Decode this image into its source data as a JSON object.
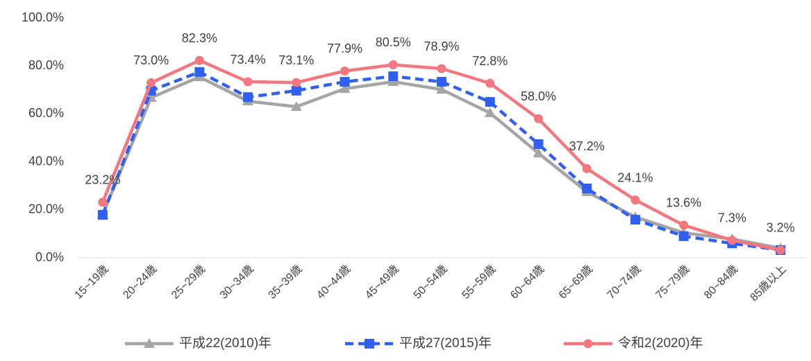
{
  "chart_data": {
    "type": "line",
    "categories": [
      "15~19歳",
      "20~24歳",
      "25~29歳",
      "30~34歳",
      "35~39歳",
      "40~44歳",
      "45~49歳",
      "50~54歳",
      "55~59歳",
      "60~64歳",
      "65~69歳",
      "70~74歳",
      "75~79歳",
      "80~84歳",
      "85歳以上"
    ],
    "series": [
      {
        "name": "平成22(2010)年",
        "color": "#a5a5a5",
        "marker": "triangle",
        "dashed": false,
        "values": [
          18,
          66.8,
          75.4,
          65.3,
          63,
          70.5,
          73.4,
          70.2,
          60.4,
          43.6,
          27.5,
          17,
          10.4,
          7.8,
          4
        ]
      },
      {
        "name": "平成27(2015)年",
        "color": "#2f5ff5",
        "marker": "square",
        "dashed": true,
        "values": [
          17.9,
          69.7,
          77.5,
          67,
          69.7,
          73.4,
          75.7,
          73.4,
          65,
          47.4,
          28.9,
          15.9,
          9,
          6,
          3.2
        ]
      },
      {
        "name": "令和2(2020)年",
        "color": "#f4777f",
        "marker": "circle",
        "dashed": false,
        "values": [
          23.2,
          73.0,
          82.3,
          73.4,
          73.1,
          77.9,
          80.5,
          78.9,
          72.8,
          58.0,
          37.2,
          24.1,
          13.6,
          7.3,
          3.2
        ],
        "value_labels": [
          "23.2%",
          "73.0%",
          "82.3%",
          "73.4%",
          "73.1%",
          "77.9%",
          "80.5%",
          "78.9%",
          "72.8%",
          "58.0%",
          "37.2%",
          "24.1%",
          "13.6%",
          "7.3%",
          "3.2%"
        ]
      }
    ],
    "ylim": [
      0,
      100
    ],
    "yticks": [
      {
        "value": 0,
        "label": "0.0%"
      },
      {
        "value": 20,
        "label": "20.0%"
      },
      {
        "value": 40,
        "label": "40.0%"
      },
      {
        "value": 60,
        "label": "60.0%"
      },
      {
        "value": 80,
        "label": "80.0%"
      },
      {
        "value": 100,
        "label": "100.0%"
      }
    ],
    "grid": false,
    "legend": "bottom"
  }
}
